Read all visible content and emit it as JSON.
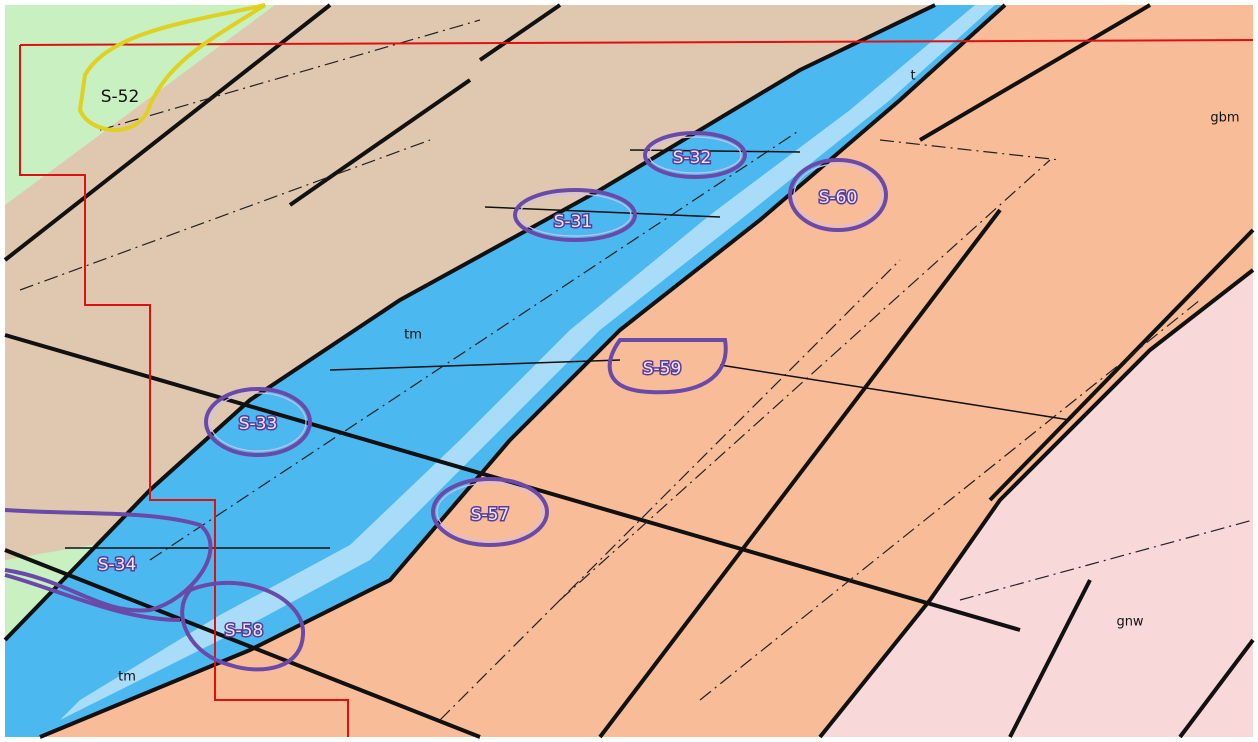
{
  "zones": [
    "S-52",
    "S-32",
    "S-60",
    "S-31",
    "S-59",
    "S-33",
    "S-57",
    "S-34",
    "S-58"
  ],
  "units": [
    "t",
    "gbm",
    "tm",
    "tm",
    "gnw"
  ]
}
